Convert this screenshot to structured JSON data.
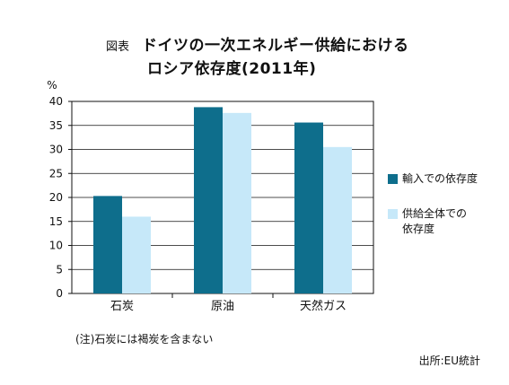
{
  "figure_label": "図表",
  "title": "ドイツの一次エネルギー供給における",
  "subtitle": "ロシア依存度(2011年)",
  "note": "(注)石炭には褐炭を含まない",
  "source": "出所:EU統計",
  "colors": {
    "series1": "#0e6e8c",
    "series2": "#c6e8f9",
    "axis": "#111111"
  },
  "chart_data": {
    "type": "bar",
    "categories": [
      "石炭",
      "原油",
      "天然ガス"
    ],
    "series": [
      {
        "name": "輸入での依存度",
        "values": [
          20.3,
          38.8,
          35.6
        ]
      },
      {
        "name": "供給全体での\n依存度",
        "values": [
          16.0,
          37.6,
          30.5
        ]
      }
    ],
    "ylabel": "%",
    "ylim": [
      0,
      40
    ],
    "yticks": [
      0,
      5,
      10,
      15,
      20,
      25,
      30,
      35,
      40
    ],
    "grid": true,
    "legend": "right"
  }
}
